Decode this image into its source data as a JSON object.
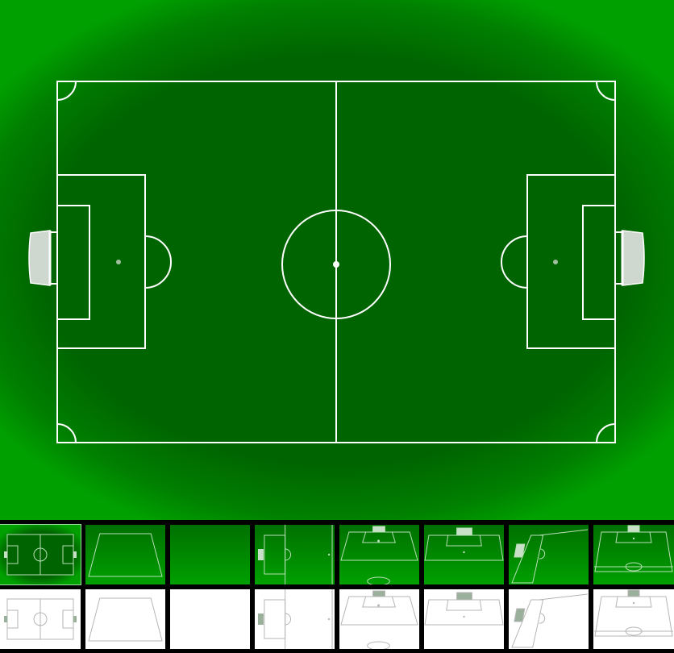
{
  "canvas": {
    "view": "pitch-top-down",
    "colors": {
      "grass": "#006400",
      "grass_edge": "#00a000",
      "lines": "#ffffff",
      "goal_net": "#cfd8cf",
      "penalty_spot": "#9fbf9f"
    }
  },
  "thumbnails": {
    "selected_index": 0,
    "items": [
      {
        "name": "top-down",
        "row": "green"
      },
      {
        "name": "trapezoid-outline",
        "row": "green"
      },
      {
        "name": "blank",
        "row": "green"
      },
      {
        "name": "half-pitch-left",
        "row": "green"
      },
      {
        "name": "goal-view-top",
        "row": "green"
      },
      {
        "name": "goal-view-top-close",
        "row": "green"
      },
      {
        "name": "angled-corner",
        "row": "green"
      },
      {
        "name": "full-pitch-perspective",
        "row": "green"
      },
      {
        "name": "top-down",
        "row": "white"
      },
      {
        "name": "trapezoid-outline",
        "row": "white"
      },
      {
        "name": "blank",
        "row": "white"
      },
      {
        "name": "half-pitch-left",
        "row": "white"
      },
      {
        "name": "goal-view-top",
        "row": "white"
      },
      {
        "name": "goal-view-top-close",
        "row": "white"
      },
      {
        "name": "angled-corner",
        "row": "white"
      },
      {
        "name": "full-pitch-perspective",
        "row": "white"
      }
    ]
  }
}
